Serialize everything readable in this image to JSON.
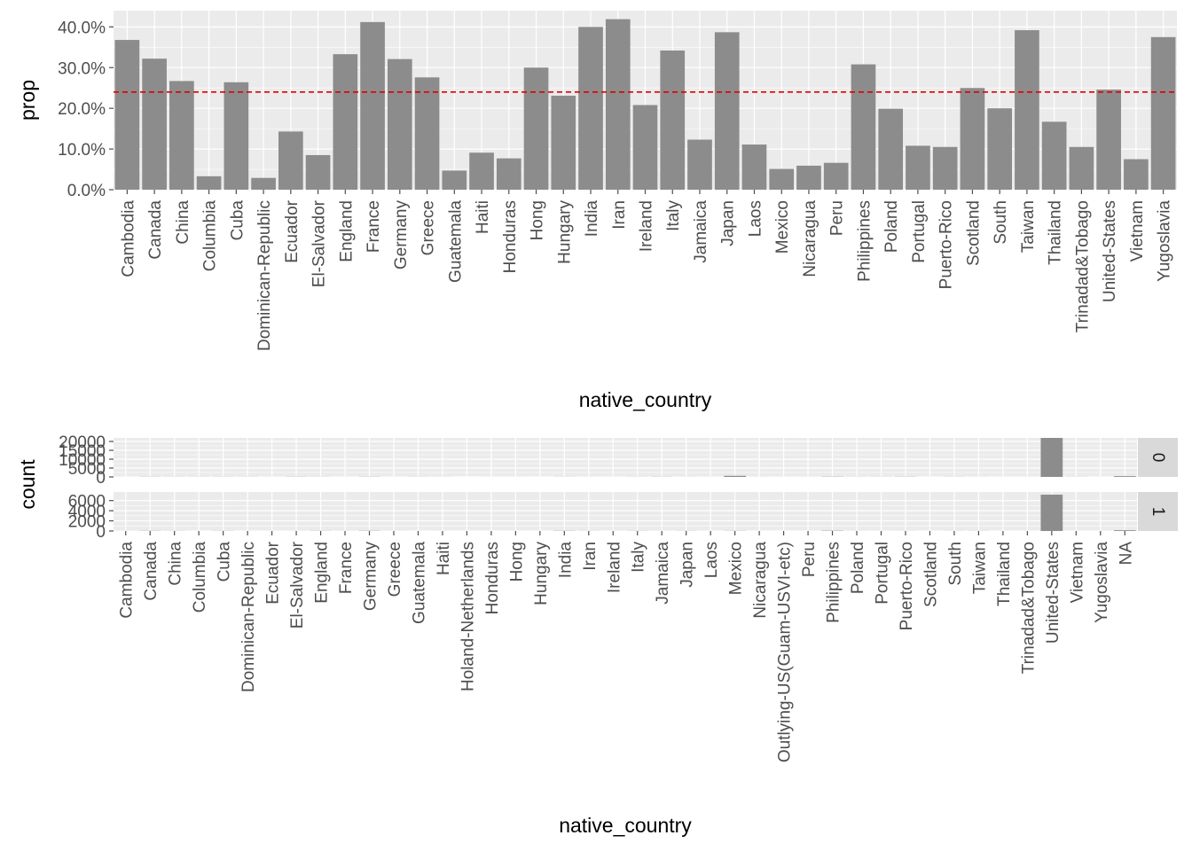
{
  "chart_data": [
    {
      "type": "bar",
      "xlabel": "native_country",
      "ylabel": "prop",
      "ylim": [
        0,
        0.44
      ],
      "y_ticks": [
        0,
        0.1,
        0.2,
        0.3,
        0.4
      ],
      "y_tick_labels": [
        "0.0%",
        "10.0%",
        "20.0%",
        "30.0%",
        "40.0%"
      ],
      "reference_line": {
        "value": 0.24,
        "style": "dashed",
        "color": "#e00000"
      },
      "bar_color": "#8c8c8c",
      "panel_bg": "#ebebeb",
      "grid": true,
      "categories": [
        "Cambodia",
        "Canada",
        "China",
        "Columbia",
        "Cuba",
        "Dominican-Republic",
        "Ecuador",
        "El-Salvador",
        "England",
        "France",
        "Germany",
        "Greece",
        "Guatemala",
        "Haiti",
        "Honduras",
        "Hong",
        "Hungary",
        "India",
        "Iran",
        "Ireland",
        "Italy",
        "Jamaica",
        "Japan",
        "Laos",
        "Mexico",
        "Nicaragua",
        "Peru",
        "Philippines",
        "Poland",
        "Portugal",
        "Puerto-Rico",
        "Scotland",
        "South",
        "Taiwan",
        "Thailand",
        "Trinadad&Tobago",
        "United-States",
        "Vietnam",
        "Yugoslavia"
      ],
      "values": [
        0.368,
        0.322,
        0.267,
        0.033,
        0.264,
        0.029,
        0.143,
        0.085,
        0.333,
        0.412,
        0.321,
        0.276,
        0.047,
        0.091,
        0.077,
        0.3,
        0.231,
        0.4,
        0.419,
        0.208,
        0.342,
        0.123,
        0.387,
        0.111,
        0.051,
        0.059,
        0.066,
        0.308,
        0.199,
        0.108,
        0.105,
        0.25,
        0.2,
        0.392,
        0.167,
        0.105,
        0.246,
        0.075,
        0.375
      ]
    },
    {
      "type": "bar",
      "faceted": true,
      "xlabel": "native_country",
      "ylabel": "count",
      "bar_color": "#8c8c8c",
      "panel_bg": "#ebebeb",
      "strip_bg": "#d9d9d9",
      "grid": true,
      "categories": [
        "Cambodia",
        "Canada",
        "China",
        "Columbia",
        "Cuba",
        "Dominican-Republic",
        "Ecuador",
        "El-Salvador",
        "England",
        "France",
        "Germany",
        "Greece",
        "Guatemala",
        "Haiti",
        "Holand-Netherlands",
        "Honduras",
        "Hong",
        "Hungary",
        "India",
        "Iran",
        "Ireland",
        "Italy",
        "Jamaica",
        "Japan",
        "Laos",
        "Mexico",
        "Nicaragua",
        "Outlying-US(Guam-USVI-etc)",
        "Peru",
        "Philippines",
        "Poland",
        "Portugal",
        "Puerto-Rico",
        "Scotland",
        "South",
        "Taiwan",
        "Thailand",
        "Trinadad&Tobago",
        "United-States",
        "Vietnam",
        "Yugoslavia",
        "NA"
      ],
      "facets": [
        {
          "label": "0",
          "ylim": [
            0,
            22000
          ],
          "y_ticks": [
            0,
            5000,
            10000,
            15000,
            20000
          ],
          "y_tick_labels": [
            "0",
            "5000",
            "10000",
            "15000",
            "20000"
          ],
          "values": [
            12,
            82,
            55,
            57,
            70,
            62,
            24,
            97,
            60,
            17,
            93,
            21,
            61,
            39,
            1,
            13,
            14,
            10,
            60,
            25,
            20,
            48,
            81,
            38,
            16,
            610,
            31,
            14,
            29,
            137,
            48,
            60,
            102,
            9,
            64,
            31,
            15,
            17,
            21999,
            62,
            10,
            437
          ]
        },
        {
          "label": "1",
          "ylim": [
            0,
            7700
          ],
          "y_ticks": [
            0,
            2000,
            4000,
            6000
          ],
          "y_tick_labels": [
            "0",
            "2000",
            "4000",
            "6000"
          ],
          "values": [
            7,
            39,
            20,
            2,
            25,
            2,
            4,
            9,
            30,
            12,
            44,
            8,
            3,
            4,
            0,
            1,
            6,
            3,
            40,
            18,
            5,
            25,
            10,
            24,
            2,
            33,
            2,
            0,
            2,
            61,
            12,
            4,
            12,
            3,
            16,
            20,
            3,
            2,
            7171,
            5,
            6,
            146
          ]
        }
      ]
    }
  ]
}
